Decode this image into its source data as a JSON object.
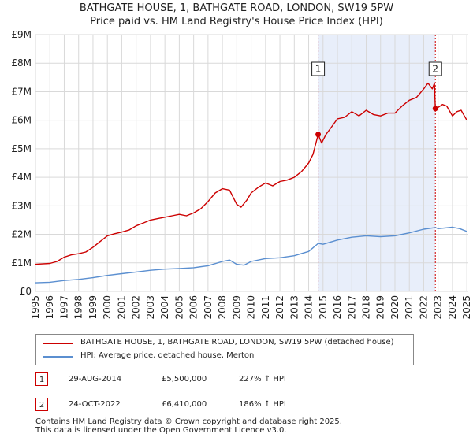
{
  "title_line1": "BATHGATE HOUSE, 1, BATHGATE ROAD, LONDON, SW19 5PW",
  "title_line2": "Price paid vs. HM Land Registry's House Price Index (HPI)",
  "colors": {
    "property": "#cc0000",
    "hpi": "#5b8fd0",
    "shade": "#e8eefa",
    "grid": "#d9d9d9",
    "marker": "#cc0000"
  },
  "chart_data": {
    "type": "line",
    "title": "Price paid vs. HM Land Registry's House Price Index (HPI)",
    "xlabel": "",
    "ylabel": "",
    "xlim": [
      1995,
      2025.1
    ],
    "ylim": [
      0,
      9000000
    ],
    "y_ticks": [
      {
        "value": 0,
        "label": "£0"
      },
      {
        "value": 1000000,
        "label": "£1M"
      },
      {
        "value": 2000000,
        "label": "£2M"
      },
      {
        "value": 3000000,
        "label": "£3M"
      },
      {
        "value": 4000000,
        "label": "£4M"
      },
      {
        "value": 5000000,
        "label": "£5M"
      },
      {
        "value": 6000000,
        "label": "£6M"
      },
      {
        "value": 7000000,
        "label": "£7M"
      },
      {
        "value": 8000000,
        "label": "£8M"
      },
      {
        "value": 9000000,
        "label": "£9M"
      }
    ],
    "x_ticks": [
      "1995",
      "1996",
      "1997",
      "1998",
      "1999",
      "2000",
      "2001",
      "2002",
      "2003",
      "2004",
      "2005",
      "2006",
      "2007",
      "2008",
      "2009",
      "2010",
      "2011",
      "2012",
      "2013",
      "2014",
      "2015",
      "2016",
      "2017",
      "2018",
      "2019",
      "2020",
      "2021",
      "2022",
      "2023",
      "2024",
      "2025"
    ],
    "shaded_range": [
      2014.66,
      2022.81
    ],
    "series": [
      {
        "name": "BATHGATE HOUSE, 1, BATHGATE ROAD, LONDON, SW19 5PW (detached house)",
        "x": [
          1995.0,
          1996.0,
          1996.5,
          1997.0,
          1997.5,
          1998.0,
          1998.5,
          1999.0,
          1999.5,
          2000.0,
          2000.5,
          2001.0,
          2001.5,
          2002.0,
          2002.5,
          2003.0,
          2003.5,
          2004.0,
          2004.5,
          2005.0,
          2005.5,
          2006.0,
          2006.5,
          2007.0,
          2007.5,
          2008.0,
          2008.5,
          2009.0,
          2009.3,
          2009.7,
          2010.0,
          2010.5,
          2011.0,
          2011.5,
          2012.0,
          2012.5,
          2013.0,
          2013.5,
          2014.0,
          2014.3,
          2014.66,
          2014.9,
          2015.2,
          2015.5,
          2016.0,
          2016.5,
          2017.0,
          2017.5,
          2018.0,
          2018.5,
          2019.0,
          2019.5,
          2020.0,
          2020.5,
          2021.0,
          2021.5,
          2022.0,
          2022.3,
          2022.6,
          2022.75,
          2022.81,
          2023.0,
          2023.3,
          2023.6,
          2024.0,
          2024.3,
          2024.6,
          2025.0
        ],
        "values": [
          950000,
          980000,
          1050000,
          1200000,
          1280000,
          1320000,
          1380000,
          1550000,
          1750000,
          1950000,
          2020000,
          2080000,
          2150000,
          2300000,
          2400000,
          2500000,
          2550000,
          2600000,
          2650000,
          2700000,
          2650000,
          2750000,
          2900000,
          3150000,
          3450000,
          3600000,
          3550000,
          3050000,
          2950000,
          3200000,
          3450000,
          3650000,
          3800000,
          3700000,
          3850000,
          3900000,
          4000000,
          4200000,
          4500000,
          4800000,
          5500000,
          5200000,
          5500000,
          5700000,
          6050000,
          6100000,
          6300000,
          6150000,
          6350000,
          6200000,
          6150000,
          6250000,
          6250000,
          6500000,
          6700000,
          6800000,
          7100000,
          7300000,
          7100000,
          7300000,
          6410000,
          6450000,
          6550000,
          6500000,
          6150000,
          6300000,
          6350000,
          6000000
        ]
      },
      {
        "name": "HPI: Average price, detached house, Merton",
        "x": [
          1995.0,
          1996.0,
          1997.0,
          1998.0,
          1999.0,
          2000.0,
          2001.0,
          2002.0,
          2003.0,
          2004.0,
          2005.0,
          2006.0,
          2007.0,
          2008.0,
          2008.5,
          2009.0,
          2009.5,
          2010.0,
          2011.0,
          2012.0,
          2013.0,
          2014.0,
          2014.66,
          2015.0,
          2016.0,
          2017.0,
          2018.0,
          2019.0,
          2020.0,
          2021.0,
          2022.0,
          2022.81,
          2023.0,
          2024.0,
          2024.5,
          2025.0
        ],
        "values": [
          300000,
          320000,
          380000,
          420000,
          480000,
          560000,
          620000,
          680000,
          740000,
          780000,
          800000,
          830000,
          900000,
          1050000,
          1100000,
          950000,
          920000,
          1050000,
          1150000,
          1180000,
          1250000,
          1400000,
          1680000,
          1650000,
          1800000,
          1900000,
          1950000,
          1920000,
          1950000,
          2050000,
          2180000,
          2240000,
          2200000,
          2250000,
          2200000,
          2100000
        ]
      }
    ],
    "annotations": [
      {
        "label": "1",
        "x": 2014.66,
        "value": 5500000
      },
      {
        "label": "2",
        "x": 2022.81,
        "value": 6410000
      }
    ]
  },
  "legend": {
    "items": [
      {
        "label": "BATHGATE HOUSE, 1, BATHGATE ROAD, LONDON, SW19 5PW (detached house)"
      },
      {
        "label": "HPI: Average price, detached house, Merton"
      }
    ]
  },
  "transactions": [
    {
      "num": "1",
      "date": "29-AUG-2014",
      "price": "£5,500,000",
      "hpi": "227% ↑ HPI"
    },
    {
      "num": "2",
      "date": "24-OCT-2022",
      "price": "£6,410,000",
      "hpi": "186% ↑ HPI"
    }
  ],
  "footer": {
    "line1": "Contains HM Land Registry data © Crown copyright and database right 2025.",
    "line2": "This data is licensed under the Open Government Licence v3.0."
  }
}
